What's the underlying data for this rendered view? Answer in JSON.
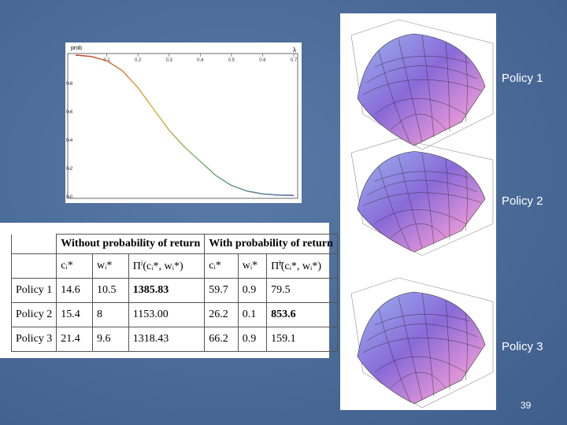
{
  "chart_data": {
    "type": "line",
    "xlabel": "λ",
    "ylabel": "prob",
    "x": [
      0,
      0.05,
      0.1,
      0.15,
      0.2,
      0.25,
      0.3,
      0.35,
      0.4,
      0.45,
      0.5,
      0.55,
      0.6,
      0.65,
      0.7
    ],
    "series": [
      {
        "values": [
          1.0,
          0.99,
          0.96,
          0.89,
          0.77,
          0.62,
          0.47,
          0.35,
          0.25,
          0.15,
          0.08,
          0.04,
          0.02,
          0.012,
          0.01
        ]
      }
    ],
    "xlim": [
      0,
      0.7
    ],
    "ylim": [
      0,
      1.0
    ],
    "xticks": [
      0.1,
      0.2,
      0.3,
      0.4,
      0.5,
      0.6,
      0.7
    ],
    "yticks": [
      {
        "value": 0,
        "label": "0.0"
      },
      0.2,
      0.4,
      0.6,
      0.8
    ]
  },
  "table": {
    "group_headers": [
      "Without probability of return",
      "With probability of return"
    ],
    "column_headers": [
      "cᵢ*",
      "wᵢ*",
      "Πⁱ(cᵢ*, wᵢ*)",
      "cᵢ*",
      "wᵢ*",
      "Π̃ⁱ(cᵢ*, wᵢ*)"
    ],
    "rows": [
      [
        "Policy 1",
        "14.6",
        "10.5",
        "1385.83",
        "59.7",
        "0.9",
        "79.5"
      ],
      [
        "Policy 2",
        "15.4",
        "8",
        "1153.00",
        "26.2",
        "0.1",
        "853.6"
      ],
      [
        "Policy 3",
        "21.4",
        "9.6",
        "1318.43",
        "66.2",
        "0.9",
        "159.1"
      ]
    ],
    "bold_cells": [
      [
        0,
        3
      ],
      [
        1,
        6
      ]
    ]
  },
  "surface_labels": [
    "Policy 1",
    "Policy 2",
    "Policy 3"
  ],
  "page_number": "39"
}
